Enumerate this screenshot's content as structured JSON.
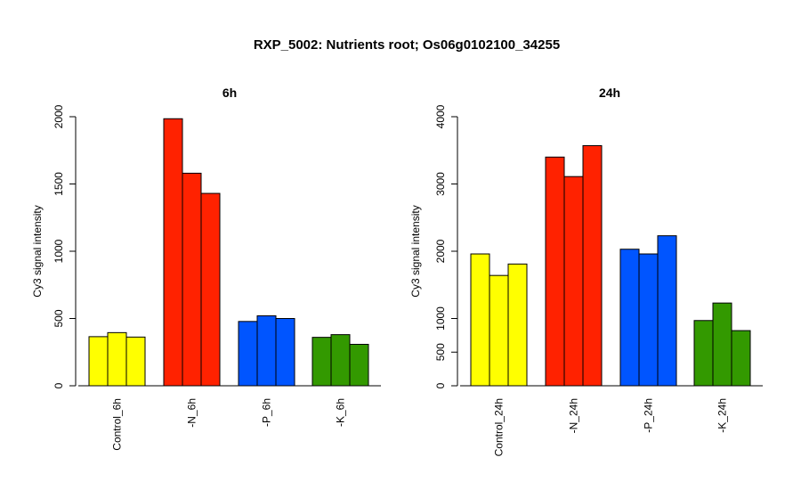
{
  "figure": {
    "title": "RXP_5002: Nutrients root; Os06g0102100_34255"
  },
  "chart_data": [
    {
      "type": "bar",
      "title": "6h",
      "xlabel": "",
      "ylabel": "Cy3 signal intensity",
      "ylim": [
        0,
        2000
      ],
      "yticks": [
        0,
        500,
        1000,
        1500,
        2000
      ],
      "groups": [
        {
          "label": "Control_6h",
          "color": "#FFFF00",
          "values": [
            365,
            395,
            362
          ]
        },
        {
          "label": "-N_6h",
          "color": "#FF2200",
          "values": [
            1985,
            1580,
            1430
          ]
        },
        {
          "label": "-P_6h",
          "color": "#0055FF",
          "values": [
            478,
            520,
            500
          ]
        },
        {
          "label": "-K_6h",
          "color": "#339900",
          "values": [
            360,
            380,
            308
          ]
        }
      ]
    },
    {
      "type": "bar",
      "title": "24h",
      "xlabel": "",
      "ylabel": "Cy3 signal intensity",
      "ylim": [
        0,
        4000
      ],
      "yticks": [
        0,
        500,
        1000,
        2000,
        3000,
        4000
      ],
      "groups": [
        {
          "label": "Control_24h",
          "color": "#FFFF00",
          "values": [
            1960,
            1640,
            1810
          ]
        },
        {
          "label": "-N_24h",
          "color": "#FF2200",
          "values": [
            3400,
            3110,
            3570
          ]
        },
        {
          "label": "-P_24h",
          "color": "#0055FF",
          "values": [
            2030,
            1960,
            2230
          ]
        },
        {
          "label": "-K_24h",
          "color": "#339900",
          "values": [
            970,
            1230,
            820
          ]
        }
      ]
    }
  ]
}
